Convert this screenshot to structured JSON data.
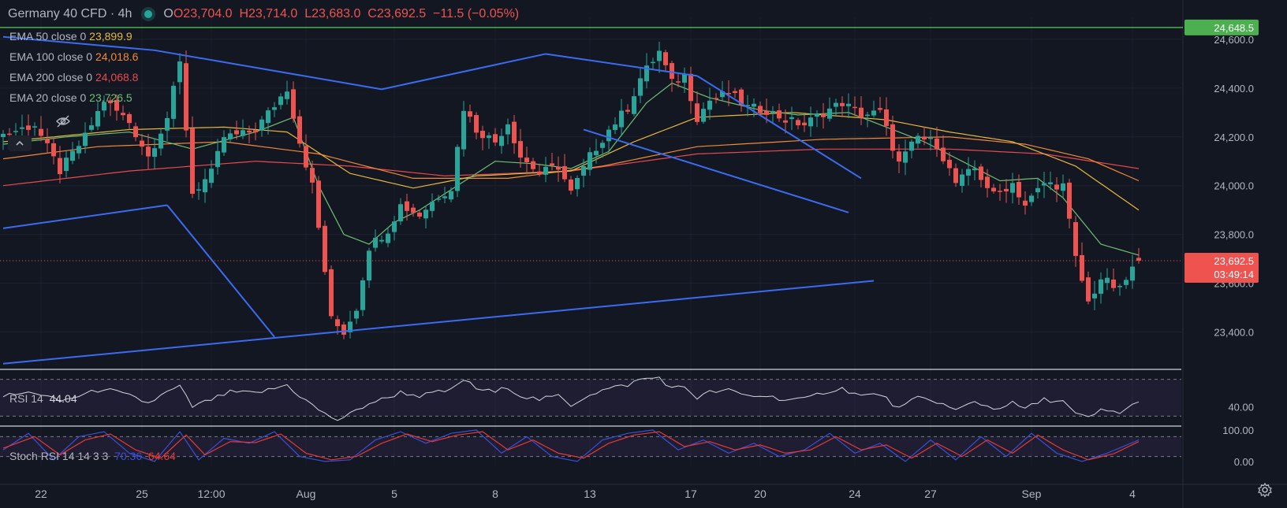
{
  "header": {
    "symbol": "Germany 40 CFD · 4h",
    "open": "O23,704.0",
    "high": "H23,714.0",
    "low": "L23,683.0",
    "close": "C23,692.5",
    "change": "−11.5 (−0.05%)"
  },
  "legend": [
    {
      "label": "EMA 50 close 0",
      "value": "23,899.9",
      "color": "#e6b83d"
    },
    {
      "label": "EMA 100 close 0",
      "value": "24,018.6",
      "color": "#f08a3a"
    },
    {
      "label": "EMA 200 close 0",
      "value": "24,068.8",
      "color": "#e8494f"
    },
    {
      "label": "EMA 20 close 0",
      "value": "23,726.5",
      "color": "#6fbf73"
    }
  ],
  "price_badges": {
    "resistance": "24,648.5",
    "last_price": "23,692.5",
    "countdown": "03:49:14"
  },
  "rsi_pane": {
    "label": "RSI 14",
    "value": "44.04",
    "axis_label": "40.00"
  },
  "stoch_pane": {
    "label": "Stoch RSI 14 14 3 3",
    "k_value": "70.36",
    "d_value": "64.64",
    "axis_top": "100.00",
    "axis_bottom": "0.00"
  },
  "colors": {
    "up": "#26a69a",
    "down": "#ef5350",
    "pattern": "#3b6cf0",
    "rsi": "#d1d4dc",
    "stoch_k": "#3b4fd6",
    "stoch_d": "#e53935"
  },
  "chart_data": {
    "type": "candlestick",
    "title": "Germany 40 CFD · 4h",
    "ylim": [
      23250,
      24690
    ],
    "y_ticks": [
      "24,600.0",
      "24,400.0",
      "24,200.0",
      "24,000.0",
      "23,800.0",
      "23,600.0",
      "23,400.0"
    ],
    "y_tick_values": [
      24600,
      24400,
      24200,
      24000,
      23800,
      23600,
      23400
    ],
    "x_tick_labels": [
      "22",
      "25",
      "12:00",
      "Aug",
      "5",
      "8",
      "13",
      "17",
      "20",
      "24",
      "27",
      "Sep",
      "4"
    ],
    "x_tick_index": [
      6,
      22,
      33,
      48,
      62,
      78,
      93,
      109,
      120,
      135,
      147,
      163,
      179
    ],
    "num_bars": 181,
    "price_anchors": [
      [
        0,
        24210
      ],
      [
        5,
        24250
      ],
      [
        9,
        24060
      ],
      [
        13,
        24200
      ],
      [
        16,
        24350
      ],
      [
        20,
        24260
      ],
      [
        23,
        24120
      ],
      [
        26,
        24280
      ],
      [
        28,
        24500
      ],
      [
        30,
        23970
      ],
      [
        33,
        24050
      ],
      [
        35,
        24200
      ],
      [
        38,
        24210
      ],
      [
        40,
        24230
      ],
      [
        43,
        24330
      ],
      [
        45,
        24400
      ],
      [
        47,
        24180
      ],
      [
        49,
        24000
      ],
      [
        51,
        23650
      ],
      [
        52,
        23450
      ],
      [
        54,
        23400
      ],
      [
        56,
        23500
      ],
      [
        58,
        23750
      ],
      [
        61,
        23820
      ],
      [
        63,
        23920
      ],
      [
        66,
        23880
      ],
      [
        69,
        23960
      ],
      [
        71,
        23990
      ],
      [
        73,
        24320
      ],
      [
        75,
        24230
      ],
      [
        78,
        24180
      ],
      [
        80,
        24260
      ],
      [
        82,
        24120
      ],
      [
        85,
        24050
      ],
      [
        88,
        24080
      ],
      [
        90,
        23970
      ],
      [
        93,
        24120
      ],
      [
        96,
        24230
      ],
      [
        99,
        24320
      ],
      [
        101,
        24440
      ],
      [
        104,
        24550
      ],
      [
        106,
        24420
      ],
      [
        108,
        24450
      ],
      [
        110,
        24280
      ],
      [
        112,
        24350
      ],
      [
        115,
        24380
      ],
      [
        118,
        24320
      ],
      [
        121,
        24310
      ],
      [
        124,
        24270
      ],
      [
        127,
        24250
      ],
      [
        130,
        24300
      ],
      [
        133,
        24340
      ],
      [
        136,
        24290
      ],
      [
        139,
        24300
      ],
      [
        142,
        24090
      ],
      [
        145,
        24200
      ],
      [
        148,
        24170
      ],
      [
        151,
        24010
      ],
      [
        154,
        24070
      ],
      [
        157,
        23960
      ],
      [
        160,
        24010
      ],
      [
        162,
        23920
      ],
      [
        165,
        24010
      ],
      [
        168,
        24000
      ],
      [
        170,
        23700
      ],
      [
        172,
        23520
      ],
      [
        174,
        23620
      ],
      [
        177,
        23570
      ],
      [
        179,
        23660
      ],
      [
        180,
        23692
      ]
    ],
    "ema20_anchors": [
      [
        0,
        24170
      ],
      [
        10,
        24200
      ],
      [
        20,
        24220
      ],
      [
        30,
        24150
      ],
      [
        40,
        24220
      ],
      [
        46,
        24280
      ],
      [
        50,
        24000
      ],
      [
        54,
        23800
      ],
      [
        58,
        23760
      ],
      [
        62,
        23850
      ],
      [
        66,
        23900
      ],
      [
        72,
        24000
      ],
      [
        78,
        24100
      ],
      [
        84,
        24090
      ],
      [
        90,
        24070
      ],
      [
        96,
        24140
      ],
      [
        102,
        24340
      ],
      [
        106,
        24420
      ],
      [
        112,
        24360
      ],
      [
        120,
        24310
      ],
      [
        126,
        24290
      ],
      [
        134,
        24300
      ],
      [
        140,
        24240
      ],
      [
        146,
        24180
      ],
      [
        152,
        24100
      ],
      [
        158,
        24020
      ],
      [
        164,
        24030
      ],
      [
        168,
        23950
      ],
      [
        174,
        23760
      ],
      [
        180,
        23715
      ]
    ],
    "ema50_anchors": [
      [
        0,
        24180
      ],
      [
        20,
        24230
      ],
      [
        35,
        24240
      ],
      [
        45,
        24220
      ],
      [
        55,
        24050
      ],
      [
        65,
        23990
      ],
      [
        75,
        24040
      ],
      [
        90,
        24060
      ],
      [
        100,
        24180
      ],
      [
        110,
        24280
      ],
      [
        125,
        24300
      ],
      [
        140,
        24270
      ],
      [
        150,
        24220
      ],
      [
        160,
        24180
      ],
      [
        170,
        24080
      ],
      [
        180,
        23900
      ]
    ],
    "ema100_anchors": [
      [
        0,
        24110
      ],
      [
        15,
        24160
      ],
      [
        35,
        24180
      ],
      [
        50,
        24130
      ],
      [
        65,
        24030
      ],
      [
        80,
        24030
      ],
      [
        95,
        24080
      ],
      [
        110,
        24160
      ],
      [
        130,
        24190
      ],
      [
        150,
        24200
      ],
      [
        162,
        24170
      ],
      [
        172,
        24110
      ],
      [
        180,
        24020
      ]
    ],
    "ema200_anchors": [
      [
        0,
        24000
      ],
      [
        20,
        24060
      ],
      [
        40,
        24100
      ],
      [
        55,
        24080
      ],
      [
        70,
        24040
      ],
      [
        90,
        24060
      ],
      [
        110,
        24130
      ],
      [
        130,
        24150
      ],
      [
        150,
        24150
      ],
      [
        165,
        24130
      ],
      [
        180,
        24070
      ]
    ],
    "pattern_lines": [
      {
        "from": [
          0,
          24610
        ],
        "to": [
          24,
          24555
        ]
      },
      {
        "from": [
          24,
          24555
        ],
        "to": [
          60,
          24395
        ]
      },
      {
        "from": [
          60,
          24395
        ],
        "to": [
          86,
          24540
        ]
      },
      {
        "from": [
          86,
          24540
        ],
        "to": [
          110,
          24450
        ]
      },
      {
        "from": [
          110,
          24450
        ],
        "to": [
          136,
          24030
        ]
      },
      {
        "from": [
          0,
          23825
        ],
        "to": [
          26,
          23920
        ]
      },
      {
        "from": [
          26,
          23920
        ],
        "to": [
          43,
          23380
        ]
      },
      {
        "from": [
          0,
          23270
        ],
        "to": [
          138,
          23610
        ]
      },
      {
        "from": [
          92,
          24230
        ],
        "to": [
          134,
          23890
        ]
      }
    ],
    "resistance_level": 24648.5,
    "last_price": 23692.5,
    "rsi_anchors": [
      [
        0,
        52
      ],
      [
        5,
        56
      ],
      [
        9,
        46
      ],
      [
        13,
        54
      ],
      [
        16,
        60
      ],
      [
        20,
        52
      ],
      [
        23,
        44
      ],
      [
        26,
        56
      ],
      [
        28,
        62
      ],
      [
        30,
        40
      ],
      [
        33,
        48
      ],
      [
        36,
        56
      ],
      [
        40,
        55
      ],
      [
        43,
        60
      ],
      [
        45,
        64
      ],
      [
        47,
        52
      ],
      [
        49,
        42
      ],
      [
        51,
        32
      ],
      [
        53,
        26
      ],
      [
        55,
        32
      ],
      [
        58,
        44
      ],
      [
        61,
        50
      ],
      [
        63,
        56
      ],
      [
        66,
        52
      ],
      [
        69,
        56
      ],
      [
        71,
        58
      ],
      [
        73,
        70
      ],
      [
        75,
        60
      ],
      [
        78,
        56
      ],
      [
        80,
        62
      ],
      [
        82,
        52
      ],
      [
        85,
        48
      ],
      [
        88,
        52
      ],
      [
        90,
        42
      ],
      [
        93,
        54
      ],
      [
        96,
        60
      ],
      [
        99,
        64
      ],
      [
        101,
        70
      ],
      [
        104,
        72
      ],
      [
        106,
        60
      ],
      [
        108,
        62
      ],
      [
        110,
        50
      ],
      [
        112,
        56
      ],
      [
        115,
        58
      ],
      [
        118,
        52
      ],
      [
        121,
        52
      ],
      [
        124,
        48
      ],
      [
        127,
        48
      ],
      [
        130,
        56
      ],
      [
        133,
        60
      ],
      [
        136,
        52
      ],
      [
        139,
        54
      ],
      [
        142,
        38
      ],
      [
        145,
        50
      ],
      [
        148,
        46
      ],
      [
        151,
        36
      ],
      [
        154,
        46
      ],
      [
        157,
        38
      ],
      [
        160,
        44
      ],
      [
        162,
        38
      ],
      [
        165,
        48
      ],
      [
        168,
        46
      ],
      [
        170,
        32
      ],
      [
        172,
        28
      ],
      [
        174,
        36
      ],
      [
        177,
        34
      ],
      [
        179,
        42
      ],
      [
        180,
        44
      ]
    ],
    "rsi_ylim": [
      20,
      80
    ],
    "stoch_k_anchors": [
      [
        0,
        40
      ],
      [
        4,
        90
      ],
      [
        8,
        10
      ],
      [
        12,
        80
      ],
      [
        16,
        95
      ],
      [
        20,
        30
      ],
      [
        24,
        5
      ],
      [
        28,
        95
      ],
      [
        31,
        10
      ],
      [
        35,
        75
      ],
      [
        39,
        60
      ],
      [
        43,
        95
      ],
      [
        47,
        20
      ],
      [
        51,
        5
      ],
      [
        55,
        10
      ],
      [
        59,
        70
      ],
      [
        63,
        95
      ],
      [
        67,
        60
      ],
      [
        71,
        90
      ],
      [
        75,
        100
      ],
      [
        79,
        30
      ],
      [
        83,
        80
      ],
      [
        87,
        20
      ],
      [
        91,
        5
      ],
      [
        95,
        70
      ],
      [
        99,
        90
      ],
      [
        103,
        100
      ],
      [
        107,
        40
      ],
      [
        111,
        70
      ],
      [
        115,
        30
      ],
      [
        119,
        60
      ],
      [
        123,
        20
      ],
      [
        127,
        40
      ],
      [
        131,
        90
      ],
      [
        135,
        30
      ],
      [
        139,
        60
      ],
      [
        143,
        5
      ],
      [
        147,
        70
      ],
      [
        151,
        10
      ],
      [
        155,
        80
      ],
      [
        159,
        20
      ],
      [
        163,
        90
      ],
      [
        167,
        30
      ],
      [
        171,
        5
      ],
      [
        175,
        30
      ],
      [
        180,
        70
      ]
    ],
    "stoch_d_anchors": [
      [
        0,
        45
      ],
      [
        5,
        80
      ],
      [
        9,
        25
      ],
      [
        13,
        70
      ],
      [
        17,
        88
      ],
      [
        21,
        40
      ],
      [
        25,
        15
      ],
      [
        29,
        85
      ],
      [
        32,
        25
      ],
      [
        36,
        65
      ],
      [
        40,
        62
      ],
      [
        44,
        88
      ],
      [
        48,
        30
      ],
      [
        52,
        10
      ],
      [
        56,
        20
      ],
      [
        60,
        60
      ],
      [
        64,
        88
      ],
      [
        68,
        65
      ],
      [
        72,
        85
      ],
      [
        76,
        95
      ],
      [
        80,
        40
      ],
      [
        84,
        70
      ],
      [
        88,
        30
      ],
      [
        92,
        15
      ],
      [
        96,
        60
      ],
      [
        100,
        85
      ],
      [
        104,
        95
      ],
      [
        108,
        50
      ],
      [
        112,
        65
      ],
      [
        116,
        40
      ],
      [
        120,
        55
      ],
      [
        124,
        30
      ],
      [
        128,
        40
      ],
      [
        132,
        80
      ],
      [
        136,
        40
      ],
      [
        140,
        55
      ],
      [
        144,
        15
      ],
      [
        148,
        60
      ],
      [
        152,
        20
      ],
      [
        156,
        70
      ],
      [
        160,
        30
      ],
      [
        164,
        85
      ],
      [
        168,
        40
      ],
      [
        172,
        10
      ],
      [
        176,
        28
      ],
      [
        180,
        65
      ]
    ],
    "stoch_ylim": [
      0,
      100
    ]
  }
}
